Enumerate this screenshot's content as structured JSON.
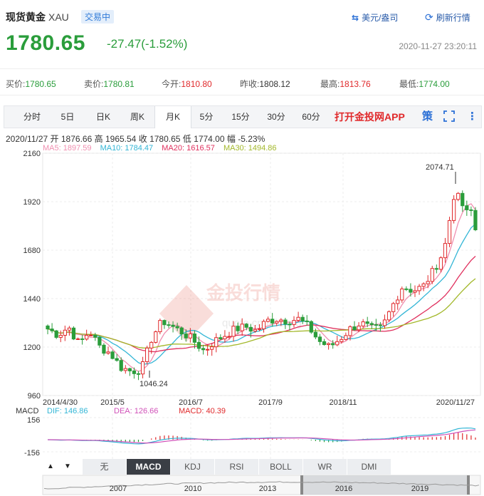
{
  "header": {
    "name": "现货黄金",
    "code": "XAU",
    "status": "交易中",
    "btn_currency": "美元/盎司",
    "btn_refresh": "刷新行情",
    "price": "1780.65",
    "change": "-27.47(-1.52%)",
    "datetime": "2020-11-27 23:20:11"
  },
  "quote": [
    {
      "label": "买价:",
      "value": "1780.65",
      "color": "#2a9d3b"
    },
    {
      "label": "卖价:",
      "value": "1780.81",
      "color": "#2a9d3b"
    },
    {
      "label": "今开:",
      "value": "1810.80",
      "color": "#e0292b"
    },
    {
      "label": "昨收:",
      "value": "1808.12",
      "color": "#333333"
    },
    {
      "label": "最高:",
      "value": "1813.76",
      "color": "#e0292b"
    },
    {
      "label": "最低:",
      "value": "1774.00",
      "color": "#2a9d3b"
    }
  ],
  "tabs": [
    "分时",
    "5日",
    "日K",
    "周K",
    "月K",
    "5分",
    "15分",
    "30分",
    "60分"
  ],
  "active_tab": "月K",
  "app_link": "打开金投网APP",
  "icons": [
    "ce-icon",
    "fullscreen-icon",
    "more-icon"
  ],
  "ce_label": "策",
  "bar_info": {
    "date": "2020/11/27",
    "open_label": "开",
    "open": "1876.66",
    "high_label": "高",
    "high": "1965.54",
    "close_label": "收",
    "close": "1780.65",
    "low_label": "低",
    "low": "1774.00",
    "amp_label": "幅",
    "amp": "-5.23%"
  },
  "ma": [
    {
      "label": "MA5: 1897.59",
      "color": "#f08fb0"
    },
    {
      "label": "MA10: 1784.47",
      "color": "#33b6d6"
    },
    {
      "label": "MA20: 1616.57",
      "color": "#e0305e"
    },
    {
      "label": "MA30: 1494.86",
      "color": "#a3b82a"
    }
  ],
  "chart_data": {
    "type": "candlestick",
    "y_ticks": [
      "2160",
      "1920",
      "1680",
      "1440",
      "1200",
      "960"
    ],
    "x_ticks": [
      "2014/4/30",
      "2015/5",
      "2016/7",
      "2017/9",
      "2018/11",
      "2020/11/27"
    ],
    "annotations": [
      "2074.71",
      "1046.24"
    ],
    "colors": {
      "up": "#e0292b",
      "down": "#2a9d3b"
    }
  },
  "macd": {
    "label": "MACD",
    "dif": "DIF: 146.86",
    "dea": "DEA: 126.66",
    "macd": "MACD: 40.39",
    "y_top": "156",
    "y_bottom": "-156"
  },
  "indicator_tabs": [
    "无",
    "MACD",
    "KDJ",
    "RSI",
    "BOLL",
    "WR",
    "DMI"
  ],
  "active_indicator": "MACD",
  "nav_years": [
    "2007",
    "2010",
    "2013",
    "2016",
    "2019"
  ],
  "watermark": "金投行情",
  "watermark_url": "quote.cngold.org"
}
